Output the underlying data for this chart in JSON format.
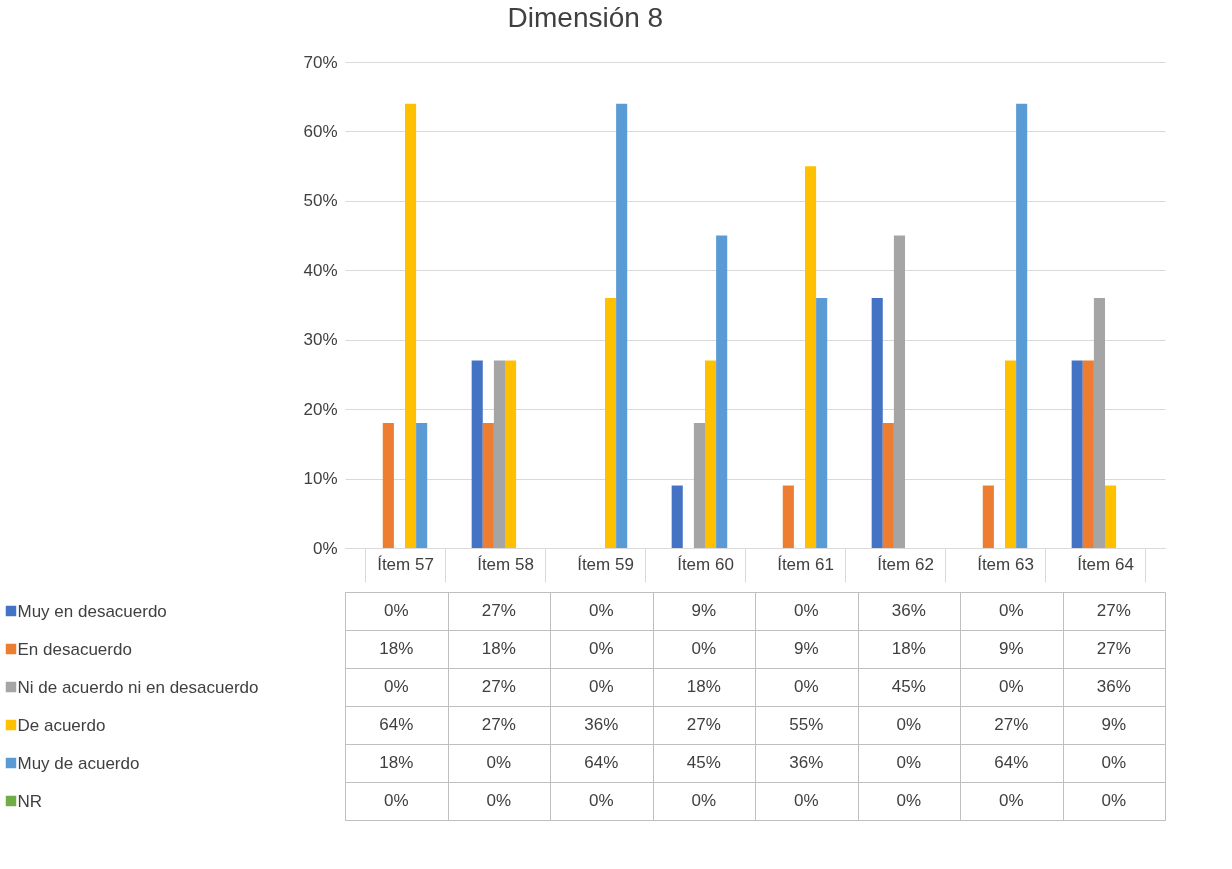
{
  "chart_data": {
    "type": "bar",
    "title": "Dimensión 8",
    "categories": [
      "Ítem 57",
      "Ítem 58",
      "Ítem 59",
      "Ítem 60",
      "Ítem 61",
      "Ítem 62",
      "Ítem 63",
      "Ítem 64"
    ],
    "series": [
      {
        "name": "Muy en desacuerdo",
        "color": "#4472c4",
        "values": [
          0,
          27,
          0,
          9,
          0,
          36,
          0,
          27
        ],
        "value_labels": [
          "0%",
          "27%",
          "0%",
          "9%",
          "0%",
          "36%",
          "0%",
          "27%"
        ]
      },
      {
        "name": "En desacuerdo",
        "color": "#ed7d31",
        "values": [
          18,
          18,
          0,
          0,
          9,
          18,
          9,
          27
        ],
        "value_labels": [
          "18%",
          "18%",
          "0%",
          "0%",
          "9%",
          "18%",
          "9%",
          "27%"
        ]
      },
      {
        "name": "Ni de acuerdo ni en desacuerdo",
        "color": "#a5a5a5",
        "values": [
          0,
          27,
          0,
          18,
          0,
          45,
          0,
          36
        ],
        "value_labels": [
          "0%",
          "27%",
          "0%",
          "18%",
          "0%",
          "45%",
          "0%",
          "36%"
        ]
      },
      {
        "name": "De acuerdo",
        "color": "#ffc000",
        "values": [
          64,
          27,
          36,
          27,
          55,
          0,
          27,
          9
        ],
        "value_labels": [
          "64%",
          "27%",
          "36%",
          "27%",
          "55%",
          "0%",
          "27%",
          "9%"
        ]
      },
      {
        "name": "Muy de acuerdo",
        "color": "#5b9bd5",
        "values": [
          18,
          0,
          64,
          45,
          36,
          0,
          64,
          0
        ],
        "value_labels": [
          "18%",
          "0%",
          "64%",
          "45%",
          "36%",
          "0%",
          "64%",
          "0%"
        ]
      },
      {
        "name": "NR",
        "color": "#70ad47",
        "values": [
          0,
          0,
          0,
          0,
          0,
          0,
          0,
          0
        ],
        "value_labels": [
          "0%",
          "0%",
          "0%",
          "0%",
          "0%",
          "0%",
          "0%",
          "0%"
        ]
      }
    ],
    "ylim": [
      0,
      70
    ],
    "yticks": [
      {
        "value": 0,
        "label": "0%"
      },
      {
        "value": 10,
        "label": "10%"
      },
      {
        "value": 20,
        "label": "20%"
      },
      {
        "value": 30,
        "label": "30%"
      },
      {
        "value": 40,
        "label": "40%"
      },
      {
        "value": 50,
        "label": "50%"
      },
      {
        "value": 60,
        "label": "60%"
      },
      {
        "value": 70,
        "label": "70%"
      }
    ],
    "grid": "y",
    "legend": "bottom"
  }
}
